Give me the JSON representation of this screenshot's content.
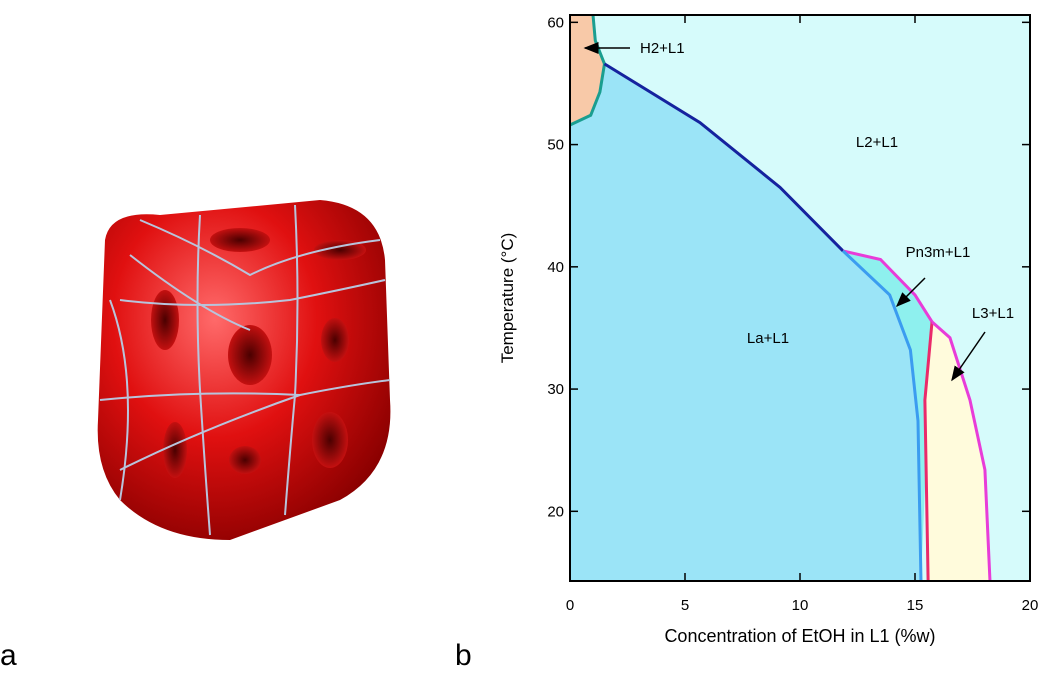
{
  "panel_labels": [
    "a",
    "b"
  ],
  "chart_data": {
    "type": "phase-diagram",
    "xlabel": "Concentration of EtOH in L1 (%w)",
    "ylabel": "Temperature (°C)",
    "xlim": [
      0,
      20
    ],
    "ylim": [
      14.3,
      60.6
    ],
    "xticks": [
      0,
      5,
      10,
      15,
      20
    ],
    "yticks": [
      20,
      30,
      40,
      50,
      60
    ],
    "background": "#d6fbfb",
    "regions": [
      {
        "label": "H2+L1",
        "color": "#f8c9a8"
      },
      {
        "label": "L2+L1",
        "color": "#d6fbfb"
      },
      {
        "label": "Pn3m+L1",
        "color": "#9be4f7"
      },
      {
        "label": "L3+L1",
        "color": "#8ef0ee"
      },
      {
        "label": "La+L1",
        "color": "#fffbdc"
      }
    ],
    "series": [
      {
        "color": "#1a9e90",
        "x": [
          1.0,
          1.1,
          1.5
        ],
        "values": [
          60.6,
          58.5,
          56.6
        ]
      },
      {
        "color": "#1a9e90",
        "x": [
          1.5,
          1.3,
          0.9,
          0,
          0
        ],
        "values": [
          56.6,
          54.3,
          52.4,
          51.6,
          51.6
        ]
      },
      {
        "color": "#15229e",
        "x": [
          1.5,
          5.65,
          9.13,
          11.87
        ],
        "values": [
          56.6,
          51.8,
          46.5,
          41.3
        ]
      },
      {
        "color": "#e83cd8",
        "x": [
          11.87,
          13.5,
          15.0,
          15.74
        ],
        "values": [
          41.3,
          40.6,
          37.7,
          35.5
        ]
      },
      {
        "color": "#3b9cf0",
        "x": [
          11.87,
          13.9,
          14.8,
          15.13,
          15.26
        ],
        "values": [
          41.3,
          37.7,
          33.2,
          27.4,
          14.3
        ]
      },
      {
        "color": "#ea2a6a",
        "x": [
          15.57,
          15.43,
          15.74
        ],
        "values": [
          14.3,
          29.1,
          35.5
        ]
      },
      {
        "color": "#e83cd8",
        "x": [
          15.74,
          16.52,
          17.39,
          18.04,
          18.26
        ],
        "values": [
          35.5,
          34.2,
          29.1,
          23.4,
          14.3
        ]
      }
    ]
  }
}
